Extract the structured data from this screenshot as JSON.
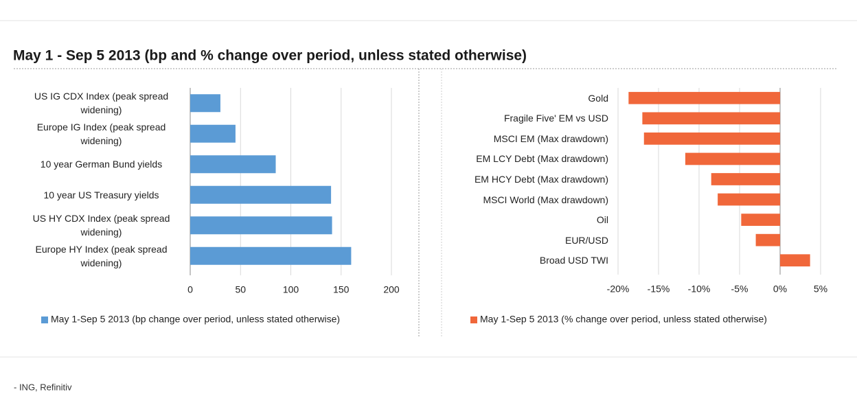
{
  "header": {
    "title": "May 1 - Sep 5 2013 (bp and % change over period, unless stated otherwise)"
  },
  "footer": {
    "source": "- ING, Refinitiv"
  },
  "chart_data": [
    {
      "type": "hbar",
      "categories": [
        "US IG CDX Index (peak spread widening)",
        "Europe IG Index (peak spread widening)",
        "10 year German Bund yields",
        "10 year US Treasury yields",
        "US HY CDX Index (peak spread widening)",
        "Europe HY Index (peak spread widening)"
      ],
      "series": [
        {
          "name": "May 1-Sep 5 2013 (bp change over period, unless stated otherwise)",
          "color": "#5b9bd5",
          "values": [
            30,
            45,
            85,
            140,
            141,
            160
          ]
        }
      ],
      "xlim": [
        0,
        200
      ],
      "xticks": [
        0,
        50,
        100,
        150,
        200
      ],
      "grid": true,
      "legend": "bottom"
    },
    {
      "type": "hbar",
      "categories": [
        "Gold",
        "Fragile Five' EM vs USD",
        "MSCI EM (Max drawdown)",
        "EM LCY Debt (Max drawdown)",
        "EM HCY Debt (Max drawdown)",
        "MSCI World (Max drawdown)",
        "Oil",
        "EUR/USD",
        "Broad USD TWI"
      ],
      "series": [
        {
          "name": "May 1-Sep 5 2013 (% change over period, unless stated otherwise)",
          "color": "#f0673a",
          "values": [
            -18.7,
            -17,
            -16.8,
            -11.7,
            -8.5,
            -7.7,
            -4.8,
            -3,
            3.7
          ]
        }
      ],
      "xlim": [
        -20,
        5
      ],
      "xticks": [
        {
          "value": -20,
          "label": "-20%"
        },
        {
          "value": -15,
          "label": "-15%"
        },
        {
          "value": -10,
          "label": "-10%"
        },
        {
          "value": -5,
          "label": "-5%"
        },
        {
          "value": 0,
          "label": "0%"
        },
        {
          "value": 5,
          "label": "5%"
        }
      ],
      "grid": true,
      "legend": "bottom"
    }
  ]
}
